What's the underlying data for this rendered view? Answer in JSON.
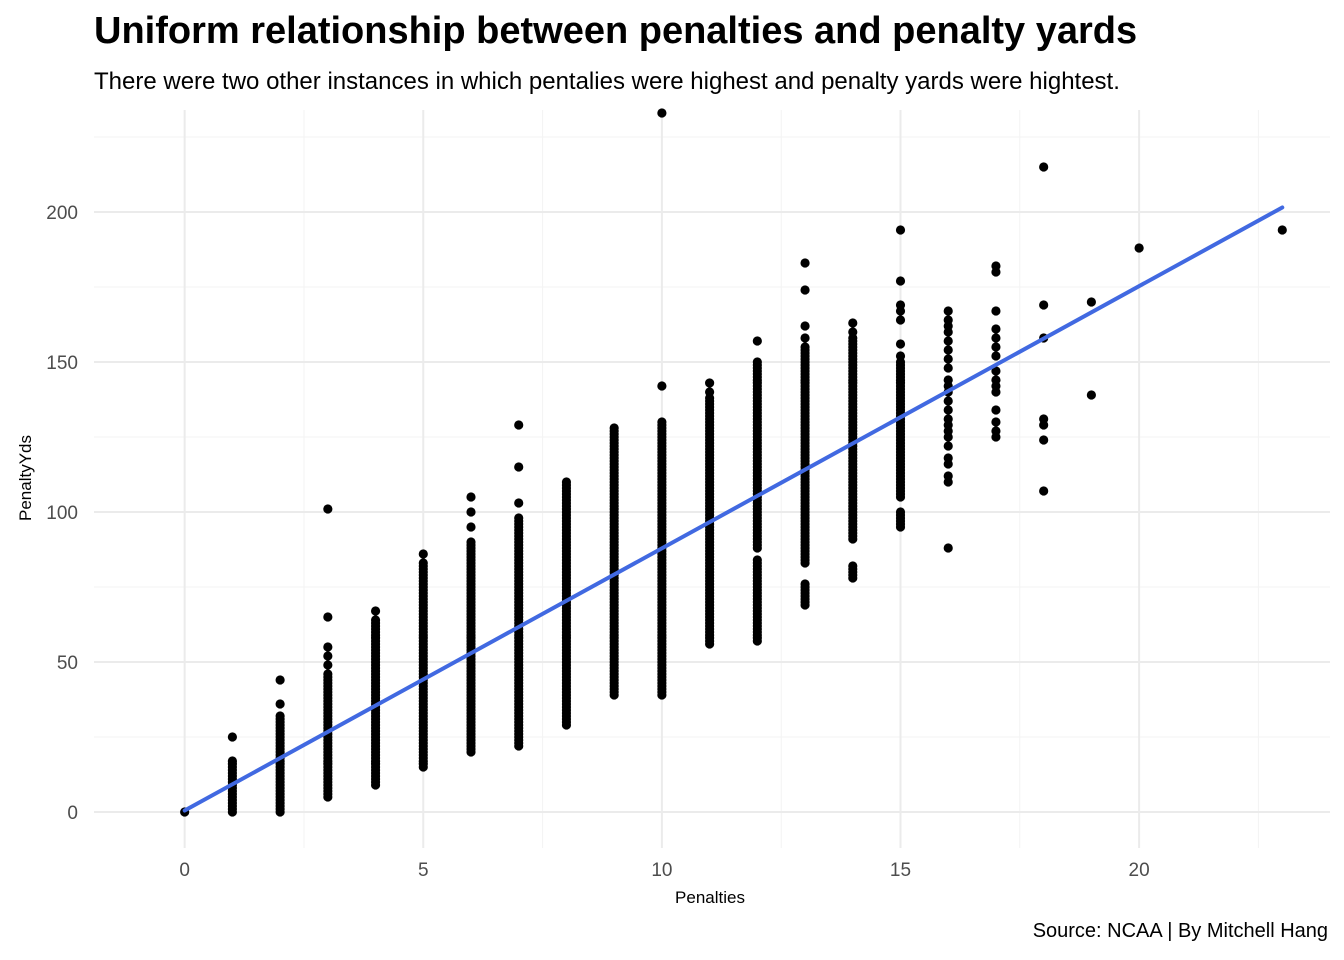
{
  "chart_data": {
    "type": "scatter",
    "title": "Uniform relationship between penalties and penalty yards",
    "subtitle": "There were two other instances in which pentalies were highest and penalty yards were hightest.",
    "caption": "Source: NCAA | By Mitchell Hang",
    "xlabel": "Penalties",
    "ylabel": "PenaltyYds",
    "xlim": [
      -1.9,
      24.0
    ],
    "ylim": [
      -12,
      234
    ],
    "x_ticks": [
      0,
      5,
      10,
      15,
      20
    ],
    "y_ticks": [
      0,
      50,
      100,
      150,
      200
    ],
    "x_tick_labels": [
      "0",
      "5",
      "10",
      "15",
      "20"
    ],
    "y_tick_labels": [
      "0",
      "50",
      "100",
      "150",
      "200"
    ],
    "grid": true,
    "point_color": "#000000",
    "line_color": "#4169e1",
    "grid_color": "#ebebeb",
    "columns": [
      {
        "x": 0,
        "points": [
          0
        ]
      },
      {
        "x": 1,
        "ranges": [
          [
            0,
            17
          ]
        ],
        "points": [
          25
        ]
      },
      {
        "x": 2,
        "ranges": [
          [
            0,
            32
          ]
        ],
        "points": [
          36,
          44
        ]
      },
      {
        "x": 3,
        "ranges": [
          [
            5,
            46
          ]
        ],
        "points": [
          49,
          52,
          55,
          65,
          101
        ]
      },
      {
        "x": 4,
        "ranges": [
          [
            9,
            64
          ]
        ],
        "points": [
          67
        ]
      },
      {
        "x": 5,
        "ranges": [
          [
            15,
            83
          ]
        ],
        "points": [
          86
        ]
      },
      {
        "x": 6,
        "ranges": [
          [
            20,
            90
          ]
        ],
        "points": [
          95,
          100,
          105
        ]
      },
      {
        "x": 7,
        "ranges": [
          [
            22,
            98
          ]
        ],
        "points": [
          103,
          115,
          129
        ]
      },
      {
        "x": 8,
        "ranges": [
          [
            29,
            110
          ]
        ]
      },
      {
        "x": 9,
        "ranges": [
          [
            39,
            128
          ]
        ]
      },
      {
        "x": 10,
        "ranges": [
          [
            39,
            130
          ]
        ],
        "points": [
          142,
          233
        ]
      },
      {
        "x": 11,
        "ranges": [
          [
            56,
            138
          ]
        ],
        "points": [
          140,
          143
        ]
      },
      {
        "x": 12,
        "ranges": [
          [
            57,
            84
          ],
          [
            88,
            150
          ]
        ],
        "points": [
          157
        ]
      },
      {
        "x": 13,
        "ranges": [
          [
            69,
            76
          ],
          [
            83,
            155
          ]
        ],
        "points": [
          158,
          162,
          174,
          183
        ]
      },
      {
        "x": 14,
        "ranges": [
          [
            78,
            82
          ],
          [
            91,
            158
          ]
        ],
        "points": [
          160,
          163
        ]
      },
      {
        "x": 15,
        "ranges": [
          [
            95,
            100
          ],
          [
            105,
            150
          ]
        ],
        "points": [
          152,
          156,
          164,
          167,
          169,
          177,
          194
        ]
      },
      {
        "x": 16,
        "points": [
          88,
          110,
          112,
          116,
          118,
          122,
          125,
          127,
          129,
          131,
          134,
          137,
          140,
          142,
          144,
          148,
          151,
          154,
          157,
          160,
          162,
          164,
          167
        ]
      },
      {
        "x": 17,
        "points": [
          125,
          127,
          130,
          134,
          140,
          142,
          144,
          147,
          152,
          155,
          158,
          161,
          167,
          180,
          182
        ]
      },
      {
        "x": 18,
        "points": [
          107,
          124,
          129,
          131,
          158,
          169,
          215
        ]
      },
      {
        "x": 19,
        "points": [
          139,
          170
        ]
      },
      {
        "x": 20,
        "points": [
          188
        ]
      },
      {
        "x": 23,
        "points": [
          194
        ]
      }
    ],
    "trend_line": {
      "x": [
        0,
        23
      ],
      "y": [
        0.5,
        201.5
      ]
    }
  }
}
